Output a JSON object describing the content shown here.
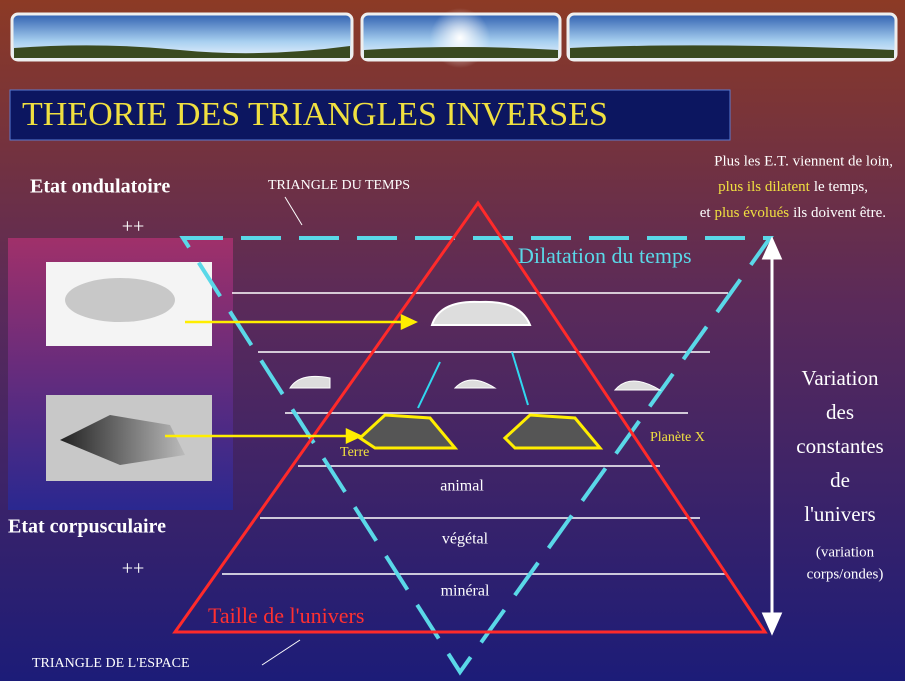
{
  "title": "THEORIE DES TRIANGLES INVERSES",
  "left": {
    "wave_state": "Etat ondulatoire",
    "wave_plus": "++",
    "particle_state": "Etat corpusculaire",
    "particle_plus": "++"
  },
  "time_triangle": {
    "label": "TRIANGLE DU TEMPS",
    "dilation": "Dilatation du temps"
  },
  "space_triangle": {
    "label": "TRIANGLE DE L'ESPACE",
    "size": "Taille de l'univers"
  },
  "note": {
    "line1": "Plus les E.T. viennent de loin,",
    "line2_highlight": "plus ils dilatent",
    "line2_rest": "le temps,",
    "line3_start": "et",
    "line3_highlight": "plus évolués",
    "line3_rest": "ils doivent être."
  },
  "right_axis": [
    "Variation",
    "des",
    "constantes",
    "de",
    "l'univers"
  ],
  "right_axis_note": [
    "(variation",
    "corps/ondes)"
  ],
  "planets": {
    "earth": "Terre",
    "planet_x": "Planète X"
  },
  "levels": [
    "animal",
    "végétal",
    "minéral"
  ]
}
